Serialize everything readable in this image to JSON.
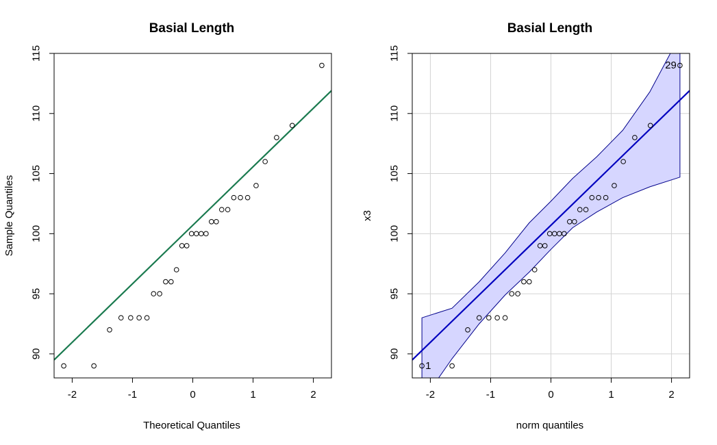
{
  "chart_data": [
    {
      "type": "scatter",
      "title": "Basial Length",
      "xlabel": "Theoretical Quantiles",
      "ylabel": "Sample Quantiles",
      "xlim": [
        -2.3,
        2.3
      ],
      "ylim": [
        88.0,
        115.0
      ],
      "xticks": [
        -2,
        -1,
        0,
        1,
        2
      ],
      "yticks": [
        90,
        95,
        100,
        105,
        110,
        115
      ],
      "grid": false,
      "colors": {
        "points": "#000000",
        "line": "#1a7a4f"
      },
      "points": {
        "x": [
          -2.14,
          -1.64,
          -1.38,
          -1.19,
          -1.03,
          -0.89,
          -0.76,
          -0.65,
          -0.55,
          -0.45,
          -0.36,
          -0.27,
          -0.18,
          -0.1,
          -0.02,
          0.06,
          0.14,
          0.22,
          0.31,
          0.39,
          0.48,
          0.58,
          0.68,
          0.79,
          0.91,
          1.05,
          1.2,
          1.39,
          1.65,
          2.14
        ],
        "y": [
          89,
          89,
          92,
          93,
          93,
          93,
          93,
          95,
          95,
          96,
          96,
          97,
          99,
          99,
          100,
          100,
          100,
          100,
          101,
          101,
          102,
          102,
          103,
          103,
          103,
          104,
          106,
          108,
          109,
          114
        ]
      },
      "reference_line": {
        "intercept": 100.7,
        "slope": 4.87
      }
    },
    {
      "type": "scatter",
      "title": "Basial Length",
      "xlabel": "norm quantiles",
      "ylabel": "x3",
      "xlim": [
        -2.3,
        2.3
      ],
      "ylim": [
        88.0,
        115.0
      ],
      "xticks": [
        -2,
        -1,
        0,
        1,
        2
      ],
      "yticks": [
        90,
        95,
        100,
        105,
        110,
        115
      ],
      "grid": true,
      "colors": {
        "points": "#000000",
        "line": "#0000bf",
        "band_fill": "#d6d6ff",
        "band_edge": "#00008b",
        "grid": "#d3d3d3"
      },
      "points": {
        "x": [
          -2.14,
          -1.64,
          -1.38,
          -1.19,
          -1.03,
          -0.89,
          -0.76,
          -0.65,
          -0.55,
          -0.45,
          -0.36,
          -0.27,
          -0.18,
          -0.1,
          -0.02,
          0.06,
          0.14,
          0.22,
          0.31,
          0.39,
          0.48,
          0.58,
          0.68,
          0.79,
          0.91,
          1.05,
          1.2,
          1.39,
          1.65,
          2.14
        ],
        "y": [
          89,
          89,
          92,
          93,
          93,
          93,
          93,
          95,
          95,
          96,
          96,
          97,
          99,
          99,
          100,
          100,
          100,
          100,
          101,
          101,
          102,
          102,
          103,
          103,
          103,
          104,
          106,
          108,
          109,
          114
        ]
      },
      "reference_line": {
        "intercept": 100.7,
        "slope": 4.87
      },
      "confidence_band": {
        "x": [
          -2.14,
          -1.64,
          -1.19,
          -0.76,
          -0.36,
          0.0,
          0.36,
          0.76,
          1.19,
          1.64,
          2.14
        ],
        "lower": [
          86.0,
          89.6,
          92.5,
          94.9,
          96.8,
          98.7,
          100.5,
          101.8,
          103.0,
          103.9,
          104.7
        ],
        "upper": [
          93.0,
          93.8,
          96.0,
          98.4,
          100.9,
          102.7,
          104.6,
          106.4,
          108.6,
          111.8,
          116.5
        ]
      },
      "point_labels": [
        {
          "text": "1",
          "x": -2.14,
          "y": 89
        },
        {
          "text": "29",
          "x": 2.14,
          "y": 114
        }
      ]
    }
  ]
}
